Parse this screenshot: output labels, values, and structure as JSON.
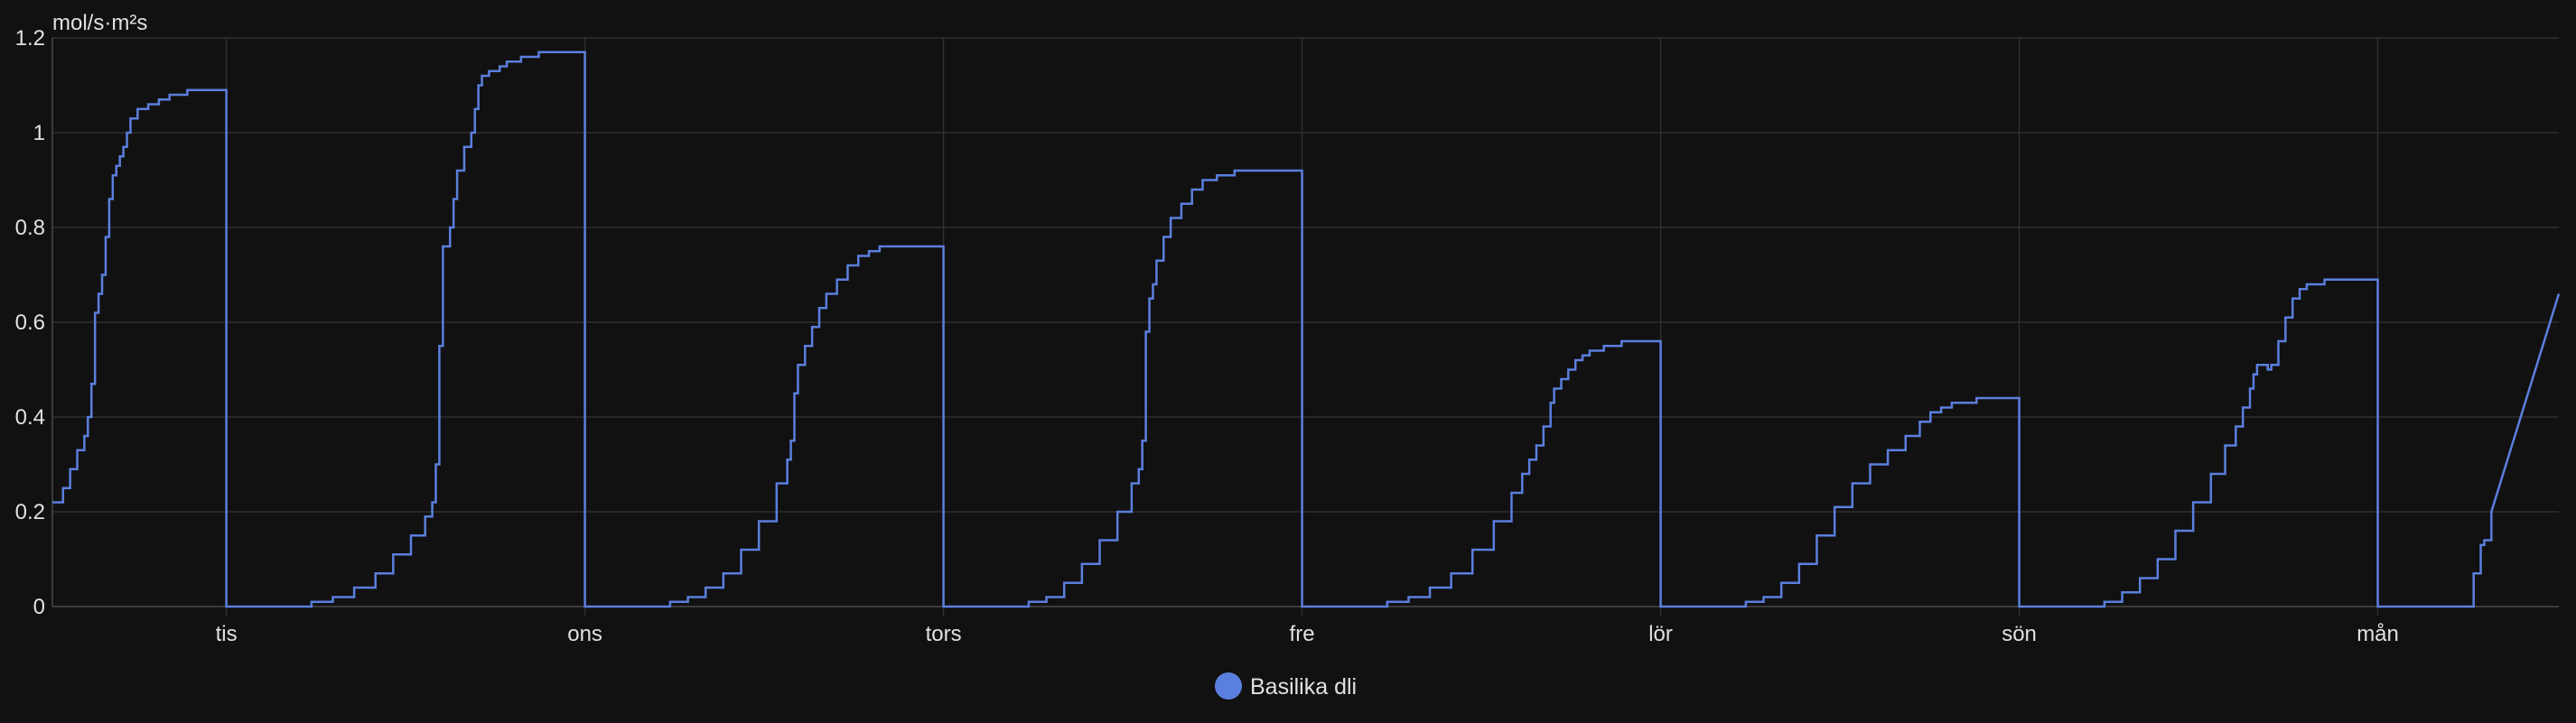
{
  "chart_data": {
    "type": "line",
    "title": "",
    "ylabel": "mol/s·m²s",
    "xlabel": "",
    "ylim": [
      0,
      1.2
    ],
    "yticks": [
      0,
      0.2,
      0.4,
      0.6,
      0.8,
      1,
      1.2
    ],
    "ytick_labels": [
      "0",
      "0.2",
      "0.4",
      "0.6",
      "0.8",
      "1",
      "1.2"
    ],
    "xlim": [
      0,
      7.06
    ],
    "xticks": [
      0.49,
      1.5,
      2.51,
      3.52,
      4.53,
      5.54,
      6.55
    ],
    "xtick_labels": [
      "tis",
      "ons",
      "tors",
      "fre",
      "lör",
      "sön",
      "mån"
    ],
    "grid": true,
    "legend_position": "bottom-center",
    "line_color": "#5b7fde",
    "series": [
      {
        "name": "Basilika dli",
        "color": "#5b7fde",
        "step": true,
        "points": [
          [
            0.0,
            0.22
          ],
          [
            0.03,
            0.25
          ],
          [
            0.05,
            0.29
          ],
          [
            0.07,
            0.33
          ],
          [
            0.09,
            0.36
          ],
          [
            0.1,
            0.4
          ],
          [
            0.11,
            0.47
          ],
          [
            0.12,
            0.62
          ],
          [
            0.13,
            0.66
          ],
          [
            0.14,
            0.7
          ],
          [
            0.15,
            0.78
          ],
          [
            0.16,
            0.86
          ],
          [
            0.17,
            0.91
          ],
          [
            0.18,
            0.93
          ],
          [
            0.19,
            0.95
          ],
          [
            0.2,
            0.97
          ],
          [
            0.21,
            1.0
          ],
          [
            0.22,
            1.03
          ],
          [
            0.24,
            1.05
          ],
          [
            0.27,
            1.06
          ],
          [
            0.3,
            1.07
          ],
          [
            0.33,
            1.08
          ],
          [
            0.37,
            1.08
          ],
          [
            0.38,
            1.09
          ],
          [
            0.49,
            1.09
          ],
          [
            0.49,
            0.0
          ],
          [
            0.73,
            0.0
          ],
          [
            0.73,
            0.01
          ],
          [
            0.79,
            0.02
          ],
          [
            0.85,
            0.04
          ],
          [
            0.91,
            0.07
          ],
          [
            0.96,
            0.11
          ],
          [
            1.01,
            0.15
          ],
          [
            1.05,
            0.19
          ],
          [
            1.07,
            0.22
          ],
          [
            1.08,
            0.3
          ],
          [
            1.09,
            0.55
          ],
          [
            1.1,
            0.76
          ],
          [
            1.12,
            0.8
          ],
          [
            1.13,
            0.86
          ],
          [
            1.14,
            0.92
          ],
          [
            1.16,
            0.97
          ],
          [
            1.18,
            1.0
          ],
          [
            1.19,
            1.05
          ],
          [
            1.2,
            1.1
          ],
          [
            1.21,
            1.12
          ],
          [
            1.23,
            1.13
          ],
          [
            1.26,
            1.14
          ],
          [
            1.28,
            1.15
          ],
          [
            1.32,
            1.16
          ],
          [
            1.37,
            1.17
          ],
          [
            1.5,
            1.17
          ],
          [
            1.5,
            0.0
          ],
          [
            1.74,
            0.0
          ],
          [
            1.74,
            0.01
          ],
          [
            1.79,
            0.02
          ],
          [
            1.84,
            0.04
          ],
          [
            1.89,
            0.07
          ],
          [
            1.94,
            0.12
          ],
          [
            1.99,
            0.18
          ],
          [
            2.04,
            0.26
          ],
          [
            2.07,
            0.31
          ],
          [
            2.08,
            0.35
          ],
          [
            2.09,
            0.45
          ],
          [
            2.1,
            0.51
          ],
          [
            2.12,
            0.55
          ],
          [
            2.14,
            0.59
          ],
          [
            2.16,
            0.63
          ],
          [
            2.18,
            0.66
          ],
          [
            2.21,
            0.69
          ],
          [
            2.24,
            0.72
          ],
          [
            2.27,
            0.74
          ],
          [
            2.3,
            0.75
          ],
          [
            2.33,
            0.76
          ],
          [
            2.51,
            0.76
          ],
          [
            2.51,
            0.0
          ],
          [
            2.75,
            0.0
          ],
          [
            2.75,
            0.01
          ],
          [
            2.8,
            0.02
          ],
          [
            2.85,
            0.05
          ],
          [
            2.9,
            0.09
          ],
          [
            2.95,
            0.14
          ],
          [
            3.0,
            0.2
          ],
          [
            3.04,
            0.26
          ],
          [
            3.06,
            0.29
          ],
          [
            3.07,
            0.35
          ],
          [
            3.08,
            0.58
          ],
          [
            3.09,
            0.65
          ],
          [
            3.1,
            0.68
          ],
          [
            3.11,
            0.73
          ],
          [
            3.13,
            0.78
          ],
          [
            3.15,
            0.82
          ],
          [
            3.18,
            0.85
          ],
          [
            3.21,
            0.88
          ],
          [
            3.24,
            0.9
          ],
          [
            3.28,
            0.91
          ],
          [
            3.33,
            0.92
          ],
          [
            3.52,
            0.92
          ],
          [
            3.52,
            0.0
          ],
          [
            3.76,
            0.0
          ],
          [
            3.76,
            0.01
          ],
          [
            3.82,
            0.02
          ],
          [
            3.88,
            0.04
          ],
          [
            3.94,
            0.07
          ],
          [
            4.0,
            0.12
          ],
          [
            4.06,
            0.18
          ],
          [
            4.11,
            0.24
          ],
          [
            4.14,
            0.28
          ],
          [
            4.16,
            0.31
          ],
          [
            4.18,
            0.34
          ],
          [
            4.2,
            0.38
          ],
          [
            4.22,
            0.43
          ],
          [
            4.23,
            0.46
          ],
          [
            4.25,
            0.48
          ],
          [
            4.27,
            0.5
          ],
          [
            4.29,
            0.52
          ],
          [
            4.31,
            0.53
          ],
          [
            4.33,
            0.54
          ],
          [
            4.37,
            0.55
          ],
          [
            4.42,
            0.56
          ],
          [
            4.53,
            0.56
          ],
          [
            4.53,
            0.0
          ],
          [
            4.77,
            0.0
          ],
          [
            4.77,
            0.01
          ],
          [
            4.82,
            0.02
          ],
          [
            4.87,
            0.05
          ],
          [
            4.92,
            0.09
          ],
          [
            4.97,
            0.15
          ],
          [
            5.02,
            0.21
          ],
          [
            5.07,
            0.26
          ],
          [
            5.12,
            0.3
          ],
          [
            5.17,
            0.33
          ],
          [
            5.22,
            0.36
          ],
          [
            5.26,
            0.39
          ],
          [
            5.29,
            0.41
          ],
          [
            5.32,
            0.42
          ],
          [
            5.35,
            0.43
          ],
          [
            5.42,
            0.44
          ],
          [
            5.54,
            0.44
          ],
          [
            5.54,
            0.0
          ],
          [
            5.78,
            0.0
          ],
          [
            5.78,
            0.01
          ],
          [
            5.83,
            0.03
          ],
          [
            5.88,
            0.06
          ],
          [
            5.93,
            0.1
          ],
          [
            5.98,
            0.16
          ],
          [
            6.03,
            0.22
          ],
          [
            6.08,
            0.28
          ],
          [
            6.12,
            0.34
          ],
          [
            6.15,
            0.38
          ],
          [
            6.17,
            0.42
          ],
          [
            6.19,
            0.46
          ],
          [
            6.2,
            0.49
          ],
          [
            6.21,
            0.51
          ],
          [
            6.23,
            0.51
          ],
          [
            6.24,
            0.5
          ],
          [
            6.25,
            0.51
          ],
          [
            6.27,
            0.56
          ],
          [
            6.29,
            0.61
          ],
          [
            6.31,
            0.65
          ],
          [
            6.33,
            0.67
          ],
          [
            6.35,
            0.68
          ],
          [
            6.38,
            0.68
          ],
          [
            6.4,
            0.69
          ],
          [
            6.55,
            0.69
          ],
          [
            6.55,
            0.0
          ],
          [
            6.79,
            0.0
          ],
          [
            6.82,
            0.07
          ],
          [
            6.84,
            0.13
          ],
          [
            6.85,
            0.14
          ],
          [
            6.87,
            0.2
          ],
          [
            7.06,
            0.66
          ]
        ]
      }
    ]
  }
}
